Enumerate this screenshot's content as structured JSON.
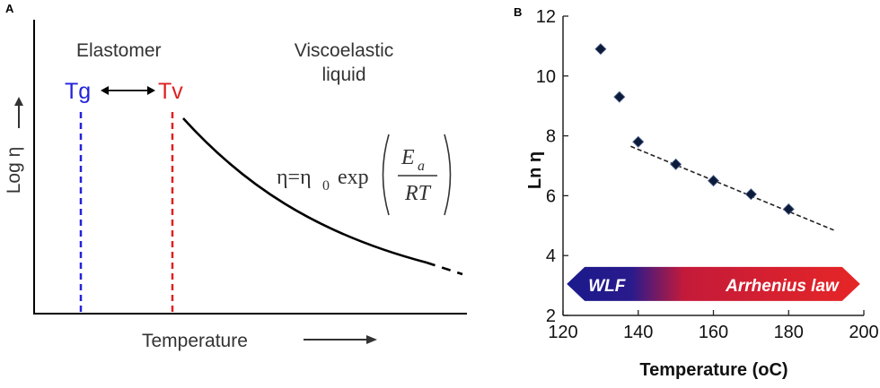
{
  "panel_a": {
    "label": "A",
    "elastomer_label": "Elastomer",
    "viscoelastic_line1": "Viscoelastic",
    "viscoelastic_line2": "liquid",
    "tg_label": "Tg",
    "tv_label": "Tv",
    "ylabel": "Log η",
    "xlabel": "Temperature",
    "formula": {
      "lhs": "η=η",
      "subscript_0": "0",
      "func": "exp",
      "numerator": "E",
      "numerator_sub": "a",
      "denominator": "RT"
    },
    "colors": {
      "tg": "#2222dd",
      "tv": "#dd2222",
      "curve": "#000000"
    }
  },
  "panel_b": {
    "label": "B",
    "band_left_label": "WLF",
    "band_right_label": "Arrhenius law",
    "colors": {
      "band_left": "#1a1a8c",
      "band_right": "#e02424",
      "markers": "#0d1b3a"
    }
  },
  "chart_data": [
    {
      "type": "line",
      "title": "",
      "xlabel": "Temperature",
      "ylabel": "Log η",
      "note": "schematic, no numeric values"
    },
    {
      "type": "scatter",
      "title": "",
      "xlabel": "Temperature (oC)",
      "ylabel": "Ln η",
      "xlim": [
        120,
        200
      ],
      "ylim": [
        2,
        12
      ],
      "xticks": [
        120,
        140,
        160,
        180,
        200
      ],
      "yticks": [
        2,
        4,
        6,
        8,
        10,
        12
      ],
      "series": [
        {
          "x": [
            130,
            135,
            140,
            150,
            160,
            170,
            180
          ],
          "y": [
            10.9,
            9.3,
            7.8,
            7.05,
            6.5,
            6.05,
            5.55
          ]
        }
      ],
      "fit_line": {
        "x": [
          138,
          192
        ],
        "y": [
          7.65,
          4.85
        ]
      },
      "band": {
        "y_center": 3.05,
        "x_start": 121,
        "x_end": 199
      },
      "grid": false
    }
  ]
}
